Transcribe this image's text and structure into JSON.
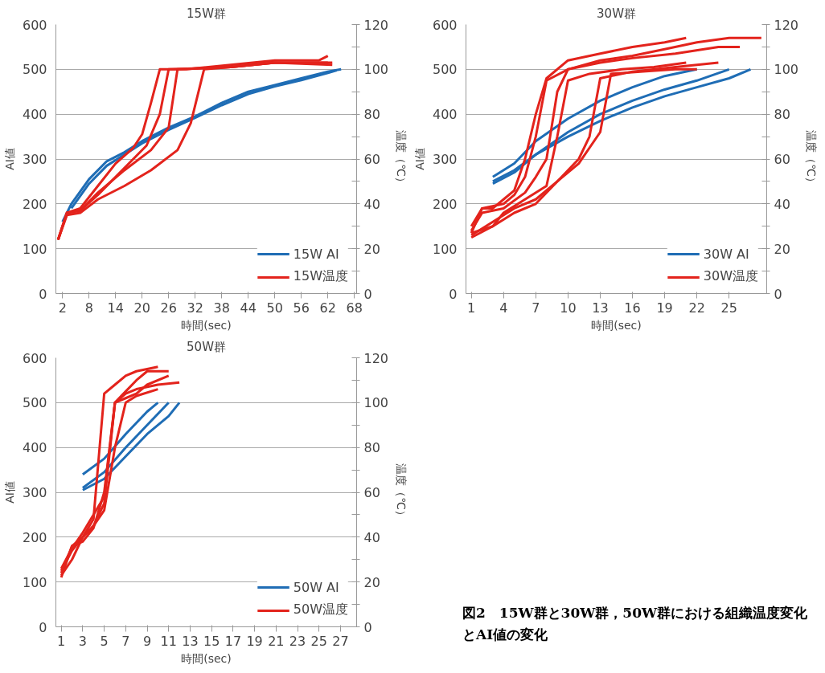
{
  "chart_data": [
    {
      "type": "line",
      "title": "15W群",
      "xlabel": "時間(sec)",
      "ylabel": "AI値",
      "y2label": "温度（℃）",
      "xlim": [
        0.5,
        68.5
      ],
      "xticks": [
        2,
        8,
        14,
        20,
        26,
        32,
        38,
        44,
        50,
        56,
        62,
        68
      ],
      "ylim": [
        0,
        600
      ],
      "yticks": [
        0,
        100,
        200,
        300,
        400,
        500,
        600
      ],
      "y2lim": [
        0,
        120
      ],
      "y2ticks": [
        0,
        {
          "value": 10,
          "label": null
        },
        20,
        {
          "value": 30,
          "label": null
        },
        40,
        {
          "value": 50,
          "label": null
        },
        60,
        {
          "value": 70,
          "label": null
        },
        80,
        {
          "value": 90,
          "label": null
        },
        100,
        {
          "value": 110,
          "label": null
        },
        120
      ],
      "grid": "y",
      "legend": "bottom right",
      "line_style": "solid",
      "marker": "none",
      "series": [
        {
          "name": "15W AI",
          "color": "#1f6db5",
          "x": [
            2,
            4,
            8,
            12,
            16,
            20,
            26,
            32,
            38,
            44,
            50,
            56,
            62,
            65
          ],
          "values": [
            160,
            200,
            255,
            295,
            315,
            340,
            370,
            395,
            425,
            450,
            465,
            480,
            495,
            500
          ]
        },
        {
          "color": "#1f6db5",
          "x": [
            4,
            8,
            12,
            16,
            20,
            26,
            32,
            38,
            44,
            50,
            56,
            62,
            64
          ],
          "values": [
            190,
            245,
            285,
            310,
            335,
            365,
            392,
            420,
            445,
            462,
            476,
            492,
            498
          ]
        },
        {
          "name": "15W温度",
          "color": "#e3231c",
          "axis": "y2",
          "x": [
            1,
            3,
            6,
            10,
            14,
            18,
            20,
            22,
            24,
            30,
            40,
            50,
            60,
            62
          ],
          "values": [
            24,
            36,
            38,
            48,
            58,
            65,
            71,
            85,
            100,
            100,
            102,
            104,
            104,
            106
          ]
        },
        {
          "color": "#e3231c",
          "axis": "y2",
          "x": [
            1,
            3,
            6,
            10,
            14,
            18,
            21,
            24,
            26,
            40,
            50,
            62
          ],
          "values": [
            24,
            36,
            37,
            44,
            52,
            60,
            66,
            80,
            100,
            101,
            103,
            103
          ]
        },
        {
          "color": "#e3231c",
          "axis": "y2",
          "x": [
            1,
            3,
            6,
            10,
            16,
            22,
            26,
            28,
            40,
            50,
            63
          ],
          "values": [
            24,
            36,
            37,
            45,
            55,
            64,
            74,
            100,
            101,
            103,
            102
          ]
        },
        {
          "color": "#e3231c",
          "axis": "y2",
          "x": [
            1,
            3,
            6,
            10,
            16,
            22,
            28,
            31,
            34,
            40,
            50,
            63
          ],
          "values": [
            24,
            35,
            36,
            42,
            48,
            55,
            64,
            76,
            100,
            101,
            103,
            103
          ]
        }
      ]
    },
    {
      "type": "line",
      "title": "30W群",
      "xlabel": "時間(sec)",
      "ylabel": "AI値",
      "y2label": "温度（℃）",
      "xlim": [
        0.5,
        28.5
      ],
      "xticks": [
        1,
        4,
        7,
        10,
        13,
        16,
        19,
        22,
        25
      ],
      "ylim": [
        0,
        600
      ],
      "yticks": [
        0,
        100,
        200,
        300,
        400,
        500,
        600
      ],
      "y2lim": [
        0,
        120
      ],
      "y2ticks": [
        0,
        {
          "value": 10,
          "label": null
        },
        20,
        {
          "value": 30,
          "label": null
        },
        40,
        {
          "value": 50,
          "label": null
        },
        60,
        {
          "value": 70,
          "label": null
        },
        80,
        {
          "value": 90,
          "label": null
        },
        100,
        {
          "value": 110,
          "label": null
        },
        120
      ],
      "grid": "y",
      "legend": "bottom right",
      "line_style": "solid",
      "marker": "none",
      "series": [
        {
          "name": "30W AI",
          "color": "#1f6db5",
          "x": [
            3,
            5,
            7,
            10,
            13,
            16,
            19,
            22
          ],
          "values": [
            260,
            290,
            340,
            390,
            430,
            460,
            485,
            500
          ]
        },
        {
          "color": "#1f6db5",
          "x": [
            3,
            5,
            7,
            10,
            13,
            16,
            19,
            22,
            25
          ],
          "values": [
            245,
            270,
            310,
            360,
            400,
            430,
            455,
            475,
            500
          ]
        },
        {
          "color": "#1f6db5",
          "x": [
            3,
            5,
            7,
            10,
            13,
            16,
            19,
            22,
            25,
            27
          ],
          "values": [
            250,
            275,
            310,
            350,
            385,
            415,
            440,
            460,
            480,
            500
          ]
        },
        {
          "name": "30W温度",
          "color": "#e3231c",
          "axis": "y2",
          "x": [
            1,
            2,
            3,
            4,
            5,
            6,
            7,
            8,
            10,
            13,
            16,
            19,
            21
          ],
          "values": [
            27,
            38,
            38,
            42,
            46,
            60,
            80,
            96,
            104,
            107,
            110,
            112,
            114
          ]
        },
        {
          "color": "#e3231c",
          "axis": "y2",
          "x": [
            1,
            2,
            4,
            5,
            6,
            7,
            8,
            10,
            13,
            16,
            19,
            22,
            25,
            28
          ],
          "values": [
            30,
            38,
            40,
            44,
            52,
            70,
            95,
            100,
            104,
            106,
            109,
            112,
            114,
            114
          ]
        },
        {
          "color": "#e3231c",
          "axis": "y2",
          "x": [
            1,
            2,
            4,
            6,
            7,
            8,
            9,
            10,
            13,
            16,
            20,
            24,
            26
          ],
          "values": [
            28,
            36,
            38,
            45,
            52,
            60,
            90,
            100,
            103,
            105,
            107,
            110,
            110
          ]
        },
        {
          "color": "#e3231c",
          "axis": "y2",
          "x": [
            1,
            3,
            4,
            6,
            8,
            9,
            10,
            12,
            15,
            18,
            21
          ],
          "values": [
            25,
            30,
            36,
            42,
            48,
            70,
            95,
            98,
            100,
            101,
            103
          ]
        },
        {
          "color": "#e3231c",
          "axis": "y2",
          "x": [
            1,
            3,
            5,
            7,
            9,
            11,
            12,
            13,
            16,
            20,
            24
          ],
          "values": [
            27,
            30,
            36,
            40,
            50,
            60,
            70,
            96,
            99,
            101,
            103
          ]
        },
        {
          "color": "#e3231c",
          "axis": "y2",
          "x": [
            1,
            3,
            5,
            7,
            9,
            11,
            13,
            14,
            17,
            20,
            22
          ],
          "values": [
            26,
            32,
            38,
            42,
            50,
            58,
            72,
            98,
            99,
            100,
            100
          ]
        }
      ]
    },
    {
      "type": "line",
      "title": "50W群",
      "xlabel": "時間(sec)",
      "ylabel": "AI値",
      "y2label": "温度（℃）",
      "xlim": [
        0.5,
        28.5
      ],
      "xticks": [
        1,
        3,
        5,
        7,
        9,
        11,
        13,
        15,
        17,
        19,
        21,
        23,
        25,
        27
      ],
      "ylim": [
        0,
        600
      ],
      "yticks": [
        0,
        100,
        200,
        300,
        400,
        500,
        600
      ],
      "y2lim": [
        0,
        120
      ],
      "y2ticks": [
        0,
        {
          "value": 10,
          "label": null
        },
        20,
        {
          "value": 30,
          "label": null
        },
        40,
        {
          "value": 50,
          "label": null
        },
        60,
        {
          "value": 70,
          "label": null
        },
        80,
        {
          "value": 90,
          "label": null
        },
        100,
        {
          "value": 110,
          "label": null
        },
        120
      ],
      "grid": "y",
      "legend": "bottom right",
      "line_style": "solid",
      "marker": "none",
      "annotations": [
        "図2　15W群と30W群，50W群における組織温度変化とAI値の変化"
      ],
      "series": [
        {
          "name": "50W AI",
          "color": "#1f6db5",
          "x": [
            3,
            5,
            7,
            9,
            10
          ],
          "values": [
            340,
            375,
            430,
            480,
            500
          ]
        },
        {
          "color": "#1f6db5",
          "x": [
            3,
            5,
            7,
            9,
            11
          ],
          "values": [
            310,
            345,
            400,
            450,
            500
          ]
        },
        {
          "color": "#1f6db5",
          "x": [
            3,
            5,
            7,
            9,
            11,
            12
          ],
          "values": [
            305,
            330,
            380,
            430,
            470,
            500
          ]
        },
        {
          "name": "50W温度",
          "color": "#e3231c",
          "axis": "y2",
          "x": [
            1,
            2,
            3,
            4,
            5,
            6,
            7,
            8,
            9,
            10
          ],
          "values": [
            22,
            36,
            40,
            48,
            104,
            108,
            112,
            114,
            115,
            116
          ]
        },
        {
          "color": "#e3231c",
          "axis": "y2",
          "x": [
            1,
            2,
            3,
            4,
            5,
            6,
            7,
            8,
            9,
            11
          ],
          "values": [
            25,
            34,
            40,
            45,
            55,
            100,
            105,
            110,
            114,
            114
          ]
        },
        {
          "color": "#e3231c",
          "axis": "y2",
          "x": [
            1,
            2,
            3,
            4,
            5,
            6,
            7,
            8,
            10,
            12
          ],
          "values": [
            24,
            36,
            38,
            44,
            60,
            100,
            104,
            106,
            108,
            109
          ]
        },
        {
          "color": "#e3231c",
          "axis": "y2",
          "x": [
            1,
            2,
            3,
            4,
            5,
            6,
            7,
            8,
            9,
            11
          ],
          "values": [
            26,
            35,
            42,
            50,
            58,
            100,
            102,
            104,
            108,
            112
          ]
        },
        {
          "color": "#e3231c",
          "axis": "y2",
          "x": [
            1,
            2,
            3,
            4,
            5,
            6,
            7,
            8,
            10
          ],
          "values": [
            23,
            30,
            40,
            45,
            52,
            80,
            100,
            103,
            106
          ]
        }
      ]
    }
  ]
}
